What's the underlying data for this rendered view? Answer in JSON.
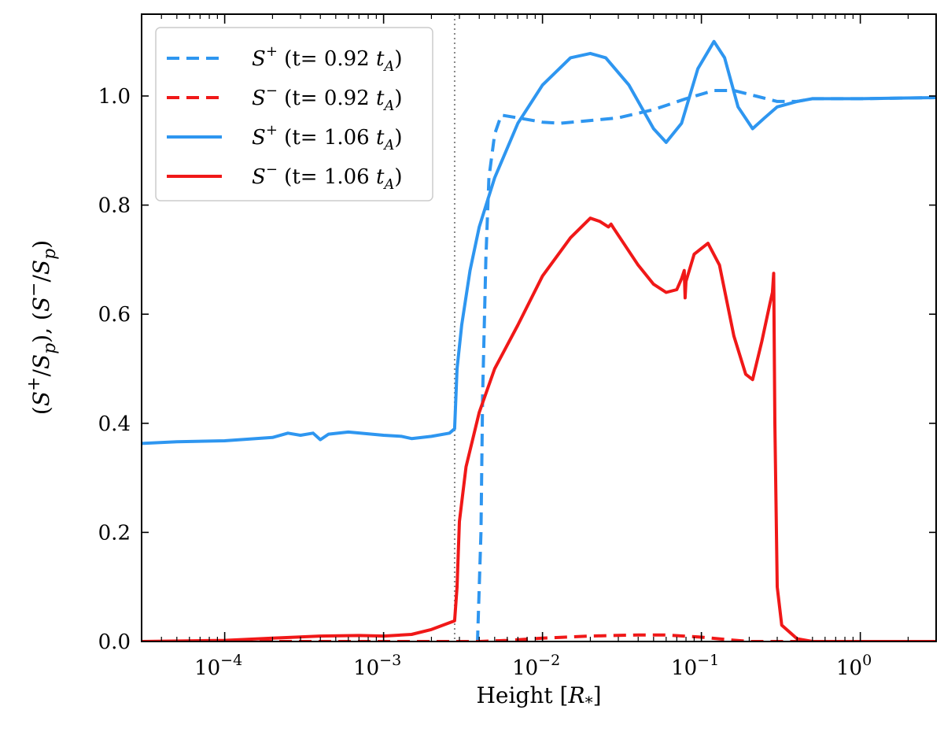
{
  "chart_data": {
    "type": "line",
    "xlabel": "Height [R*]",
    "ylabel": "(S+/Sp), (S-/Sp)",
    "xscale": "log",
    "xlim": [
      3e-05,
      3.0
    ],
    "ylim": [
      0.0,
      1.15
    ],
    "x_ticks": [
      {
        "value": 0.0001,
        "base": "10",
        "exp": "−4"
      },
      {
        "value": 0.001,
        "base": "10",
        "exp": "−3"
      },
      {
        "value": 0.01,
        "base": "10",
        "exp": "−2"
      },
      {
        "value": 0.1,
        "base": "10",
        "exp": "−1"
      },
      {
        "value": 1,
        "base": "10",
        "exp": "0"
      }
    ],
    "y_ticks": [
      "0.0",
      "0.2",
      "0.4",
      "0.6",
      "0.8",
      "1.0"
    ],
    "vline": {
      "x": 0.0028,
      "style": "dotted",
      "color": "#888888"
    },
    "legend": {
      "position": "top-left"
    },
    "series": [
      {
        "name": "S+ (t= 0.92 tA)",
        "label": {
          "sym": "S",
          "sup": "+",
          "text": " (t= 0.92 ",
          "tsub": "A"
        },
        "color": "#2e96f0",
        "dash": "dashed",
        "points": [
          [
            3e-05,
            0.0
          ],
          [
            0.001,
            0.0
          ],
          [
            0.0039,
            0.0
          ],
          [
            0.0041,
            0.2
          ],
          [
            0.0042,
            0.45
          ],
          [
            0.0044,
            0.7
          ],
          [
            0.0046,
            0.85
          ],
          [
            0.005,
            0.93
          ],
          [
            0.0055,
            0.965
          ],
          [
            0.007,
            0.96
          ],
          [
            0.01,
            0.952
          ],
          [
            0.013,
            0.95
          ],
          [
            0.02,
            0.955
          ],
          [
            0.03,
            0.96
          ],
          [
            0.05,
            0.975
          ],
          [
            0.08,
            0.995
          ],
          [
            0.12,
            1.01
          ],
          [
            0.16,
            1.01
          ],
          [
            0.22,
            1.0
          ],
          [
            0.3,
            0.99
          ],
          [
            0.4,
            0.99
          ],
          [
            0.5,
            0.995
          ],
          [
            1.0,
            0.995
          ],
          [
            3.0,
            0.997
          ]
        ]
      },
      {
        "name": "S− (t= 0.92 tA)",
        "label": {
          "sym": "S",
          "sup": "−",
          "text": " (t= 0.92 ",
          "tsub": "A"
        },
        "color": "#f01818",
        "dash": "dashed",
        "points": [
          [
            3e-05,
            0.0
          ],
          [
            0.003,
            0.0
          ],
          [
            0.004,
            0.0
          ],
          [
            0.006,
            0.002
          ],
          [
            0.01,
            0.006
          ],
          [
            0.02,
            0.01
          ],
          [
            0.04,
            0.012
          ],
          [
            0.06,
            0.012
          ],
          [
            0.1,
            0.008
          ],
          [
            0.15,
            0.003
          ],
          [
            0.2,
            0.0
          ],
          [
            3.0,
            0.0
          ]
        ]
      },
      {
        "name": "S+ (t= 1.06 tA)",
        "label": {
          "sym": "S",
          "sup": "+",
          "text": " (t= 1.06 ",
          "tsub": "A"
        },
        "color": "#2e96f0",
        "dash": "solid",
        "points": [
          [
            3e-05,
            0.363
          ],
          [
            5e-05,
            0.366
          ],
          [
            0.0001,
            0.368
          ],
          [
            0.0002,
            0.374
          ],
          [
            0.00025,
            0.382
          ],
          [
            0.0003,
            0.378
          ],
          [
            0.00036,
            0.382
          ],
          [
            0.0004,
            0.37
          ],
          [
            0.00045,
            0.38
          ],
          [
            0.0006,
            0.384
          ],
          [
            0.001,
            0.378
          ],
          [
            0.0013,
            0.376
          ],
          [
            0.0015,
            0.372
          ],
          [
            0.002,
            0.376
          ],
          [
            0.0026,
            0.382
          ],
          [
            0.0028,
            0.39
          ],
          [
            0.0029,
            0.5
          ],
          [
            0.0031,
            0.58
          ],
          [
            0.0035,
            0.68
          ],
          [
            0.004,
            0.76
          ],
          [
            0.005,
            0.85
          ],
          [
            0.007,
            0.95
          ],
          [
            0.01,
            1.02
          ],
          [
            0.015,
            1.07
          ],
          [
            0.02,
            1.078
          ],
          [
            0.025,
            1.07
          ],
          [
            0.035,
            1.02
          ],
          [
            0.05,
            0.94
          ],
          [
            0.06,
            0.915
          ],
          [
            0.075,
            0.95
          ],
          [
            0.095,
            1.05
          ],
          [
            0.12,
            1.1
          ],
          [
            0.14,
            1.07
          ],
          [
            0.17,
            0.98
          ],
          [
            0.21,
            0.94
          ],
          [
            0.25,
            0.96
          ],
          [
            0.3,
            0.98
          ],
          [
            0.4,
            0.99
          ],
          [
            0.5,
            0.995
          ],
          [
            1.0,
            0.995
          ],
          [
            3.0,
            0.997
          ]
        ]
      },
      {
        "name": "S− (t= 1.06 tA)",
        "label": {
          "sym": "S",
          "sup": "−",
          "text": " (t= 1.06 ",
          "tsub": "A"
        },
        "color": "#f01818",
        "dash": "solid",
        "points": [
          [
            3e-05,
            0.0
          ],
          [
            0.0001,
            0.002
          ],
          [
            0.0002,
            0.006
          ],
          [
            0.0004,
            0.01
          ],
          [
            0.0007,
            0.011
          ],
          [
            0.001,
            0.01
          ],
          [
            0.0015,
            0.013
          ],
          [
            0.002,
            0.022
          ],
          [
            0.0028,
            0.038
          ],
          [
            0.0029,
            0.1
          ],
          [
            0.003,
            0.22
          ],
          [
            0.0033,
            0.32
          ],
          [
            0.004,
            0.42
          ],
          [
            0.005,
            0.5
          ],
          [
            0.007,
            0.58
          ],
          [
            0.01,
            0.67
          ],
          [
            0.015,
            0.74
          ],
          [
            0.02,
            0.776
          ],
          [
            0.023,
            0.77
          ],
          [
            0.026,
            0.76
          ],
          [
            0.027,
            0.765
          ],
          [
            0.028,
            0.758
          ],
          [
            0.04,
            0.69
          ],
          [
            0.05,
            0.655
          ],
          [
            0.06,
            0.64
          ],
          [
            0.07,
            0.645
          ],
          [
            0.075,
            0.665
          ],
          [
            0.078,
            0.68
          ],
          [
            0.079,
            0.63
          ],
          [
            0.08,
            0.66
          ],
          [
            0.09,
            0.71
          ],
          [
            0.11,
            0.73
          ],
          [
            0.13,
            0.69
          ],
          [
            0.16,
            0.56
          ],
          [
            0.19,
            0.49
          ],
          [
            0.21,
            0.48
          ],
          [
            0.24,
            0.55
          ],
          [
            0.27,
            0.62
          ],
          [
            0.28,
            0.64
          ],
          [
            0.285,
            0.675
          ],
          [
            0.29,
            0.4
          ],
          [
            0.3,
            0.1
          ],
          [
            0.32,
            0.03
          ],
          [
            0.4,
            0.005
          ],
          [
            0.5,
            0.0
          ],
          [
            3.0,
            0.0
          ]
        ]
      }
    ]
  }
}
